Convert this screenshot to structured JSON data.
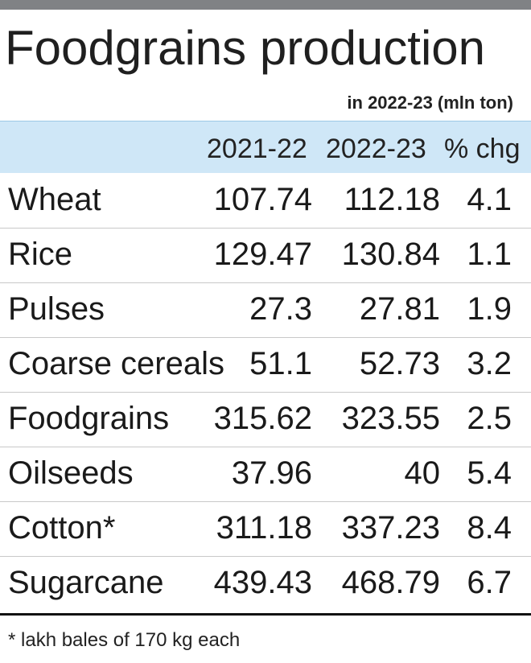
{
  "title": "Foodgrains production",
  "subtitle": "in 2022-23 (mln ton)",
  "footnote": "* lakh bales of 170 kg each",
  "colors": {
    "top_bar": "#808285",
    "header_band": "#cfe7f7",
    "rule": "#111111"
  },
  "chart_data": {
    "type": "table",
    "title": "Foodgrains production",
    "subtitle": "in 2022-23 (mln ton)",
    "columns": [
      "2021-22",
      "2022-23",
      "% chg"
    ],
    "rows": [
      {
        "name": "Wheat",
        "values": [
          "107.74",
          "112.18",
          "4.1"
        ]
      },
      {
        "name": "Rice",
        "values": [
          "129.47",
          "130.84",
          "1.1"
        ]
      },
      {
        "name": "Pulses",
        "values": [
          "27.3",
          "27.81",
          "1.9"
        ]
      },
      {
        "name": "Coarse cereals",
        "values": [
          "51.1",
          "52.73",
          "3.2"
        ]
      },
      {
        "name": "Foodgrains",
        "values": [
          "315.62",
          "323.55",
          "2.5"
        ]
      },
      {
        "name": "Oilseeds",
        "values": [
          "37.96",
          "40",
          "5.4"
        ]
      },
      {
        "name": "Cotton*",
        "values": [
          "311.18",
          "337.23",
          "8.4"
        ]
      },
      {
        "name": "Sugarcane",
        "values": [
          "439.43",
          "468.79",
          "6.7"
        ]
      }
    ],
    "footnote": "* lakh bales of 170 kg each"
  }
}
